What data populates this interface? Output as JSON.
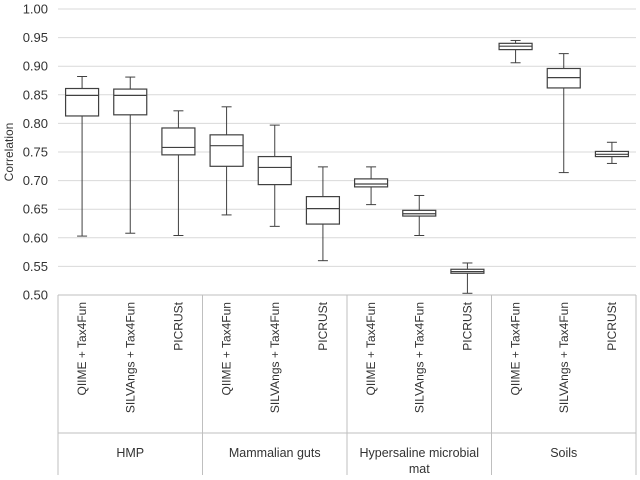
{
  "chart_data": {
    "type": "box",
    "ylabel": "Correlation",
    "xlabel": "",
    "ylim": [
      0.5,
      1.0
    ],
    "yticks": [
      "0.50",
      "0.55",
      "0.60",
      "0.65",
      "0.70",
      "0.75",
      "0.80",
      "0.85",
      "0.90",
      "0.95",
      "1.00"
    ],
    "grid": true,
    "groups": [
      {
        "name": "HMP",
        "boxes": [
          {
            "label": "QIIME + Tax4Fun",
            "min": 0.603,
            "q1": 0.813,
            "median": 0.849,
            "q3": 0.861,
            "max": 0.882
          },
          {
            "label": "SILVAngs + Tax4Fun",
            "min": 0.608,
            "q1": 0.815,
            "median": 0.849,
            "q3": 0.86,
            "max": 0.881
          },
          {
            "label": "PICRUSt",
            "min": 0.604,
            "q1": 0.745,
            "median": 0.758,
            "q3": 0.792,
            "max": 0.822
          }
        ]
      },
      {
        "name": "Mammalian guts",
        "boxes": [
          {
            "label": "QIIME + Tax4Fun",
            "min": 0.64,
            "q1": 0.725,
            "median": 0.761,
            "q3": 0.78,
            "max": 0.829
          },
          {
            "label": "SILVAngs + Tax4Fun",
            "min": 0.62,
            "q1": 0.693,
            "median": 0.723,
            "q3": 0.742,
            "max": 0.797
          },
          {
            "label": "PICRUSt",
            "min": 0.56,
            "q1": 0.624,
            "median": 0.651,
            "q3": 0.672,
            "max": 0.724
          }
        ]
      },
      {
        "name": "Hypersaline microbial mat",
        "boxes": [
          {
            "label": "QIIME + Tax4Fun",
            "min": 0.658,
            "q1": 0.689,
            "median": 0.694,
            "q3": 0.703,
            "max": 0.724
          },
          {
            "label": "SILVAngs + Tax4Fun",
            "min": 0.604,
            "q1": 0.638,
            "median": 0.642,
            "q3": 0.648,
            "max": 0.674
          },
          {
            "label": "PICRUSt",
            "min": 0.503,
            "q1": 0.538,
            "median": 0.541,
            "q3": 0.545,
            "max": 0.556
          }
        ]
      },
      {
        "name": "Soils",
        "boxes": [
          {
            "label": "QIIME + Tax4Fun",
            "min": 0.906,
            "q1": 0.929,
            "median": 0.935,
            "q3": 0.94,
            "max": 0.945
          },
          {
            "label": "SILVAngs + Tax4Fun",
            "min": 0.714,
            "q1": 0.862,
            "median": 0.88,
            "q3": 0.896,
            "max": 0.922
          },
          {
            "label": "PICRUSt",
            "min": 0.73,
            "q1": 0.742,
            "median": 0.746,
            "q3": 0.751,
            "max": 0.767
          }
        ]
      }
    ],
    "colors": {
      "box": "#404040",
      "grid": "#d9d9d9",
      "axis": "#bfbfbf",
      "fill": "#ffffff"
    }
  }
}
